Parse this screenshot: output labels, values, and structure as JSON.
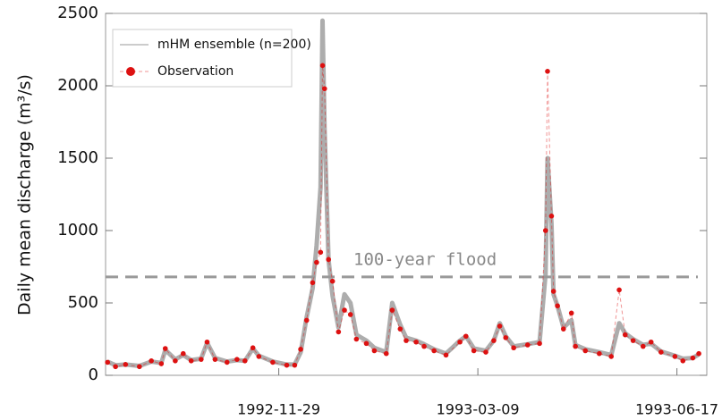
{
  "chart_data": {
    "type": "line",
    "y_label": "Daily mean discharge (m³/s)",
    "annotation": {
      "text": "100-year flood",
      "value": 680
    },
    "x": [
      "1992-09-04",
      "1992-09-08",
      "1992-09-13",
      "1992-09-20",
      "1992-09-26",
      "1992-10-01",
      "1992-10-03",
      "1992-10-08",
      "1992-10-12",
      "1992-10-16",
      "1992-10-21",
      "1992-10-24",
      "1992-10-28",
      "1992-11-03",
      "1992-11-08",
      "1992-11-12",
      "1992-11-16",
      "1992-11-19",
      "1992-11-26",
      "1992-12-03",
      "1992-12-07",
      "1992-12-10",
      "1992-12-13",
      "1992-12-16",
      "1992-12-18",
      "1992-12-20",
      "1992-12-21",
      "1992-12-22",
      "1992-12-24",
      "1992-12-26",
      "1992-12-29",
      "1993-01-01",
      "1993-01-04",
      "1993-01-07",
      "1993-01-12",
      "1993-01-16",
      "1993-01-22",
      "1993-01-25",
      "1993-01-29",
      "1993-02-01",
      "1993-02-06",
      "1993-02-10",
      "1993-02-15",
      "1993-02-21",
      "1993-02-28",
      "1993-03-03",
      "1993-03-07",
      "1993-03-13",
      "1993-03-17",
      "1993-03-20",
      "1993-03-23",
      "1993-03-27",
      "1993-04-03",
      "1993-04-09",
      "1993-04-12",
      "1993-04-13",
      "1993-04-15",
      "1993-04-16",
      "1993-04-18",
      "1993-04-21",
      "1993-04-25",
      "1993-04-27",
      "1993-05-02",
      "1993-05-09",
      "1993-05-15",
      "1993-05-19",
      "1993-05-22",
      "1993-05-26",
      "1993-05-31",
      "1993-06-04",
      "1993-06-09",
      "1993-06-16",
      "1993-06-20",
      "1993-06-25",
      "1993-06-28"
    ],
    "series": [
      {
        "name": "mHM ensemble (n=200)",
        "color": "#999999",
        "values": [
          95,
          70,
          75,
          65,
          95,
          85,
          175,
          110,
          140,
          105,
          115,
          225,
          120,
          95,
          105,
          100,
          185,
          135,
          95,
          75,
          75,
          160,
          400,
          600,
          900,
          1300,
          2450,
          1700,
          800,
          550,
          330,
          560,
          500,
          280,
          240,
          190,
          160,
          500,
          350,
          260,
          240,
          215,
          180,
          150,
          240,
          270,
          185,
          170,
          240,
          360,
          270,
          200,
          215,
          230,
          700,
          1500,
          1050,
          560,
          480,
          330,
          380,
          210,
          180,
          160,
          140,
          360,
          290,
          250,
          210,
          220,
          165,
          135,
          115,
          120,
          145
        ]
      },
      {
        "name": "Observation",
        "color": "#dd1111",
        "values": [
          90,
          60,
          75,
          60,
          100,
          80,
          185,
          100,
          150,
          100,
          110,
          230,
          110,
          90,
          110,
          100,
          190,
          130,
          90,
          70,
          70,
          180,
          380,
          640,
          780,
          850,
          2140,
          1980,
          800,
          650,
          300,
          450,
          420,
          250,
          220,
          170,
          150,
          450,
          320,
          240,
          230,
          200,
          170,
          140,
          230,
          270,
          170,
          160,
          240,
          340,
          260,
          190,
          210,
          220,
          1000,
          2100,
          1100,
          580,
          480,
          320,
          430,
          200,
          170,
          150,
          130,
          590,
          280,
          240,
          200,
          230,
          160,
          130,
          100,
          120,
          150
        ]
      }
    ],
    "xlim": [
      "1992-09-03",
      "1993-07-02"
    ],
    "xticks": [
      "1992-11-29",
      "1993-03-09",
      "1993-06-17"
    ],
    "ylim": [
      0,
      2500
    ],
    "yticks": [
      0,
      500,
      1000,
      1500,
      2000,
      2500
    ],
    "legend": "upper left"
  }
}
